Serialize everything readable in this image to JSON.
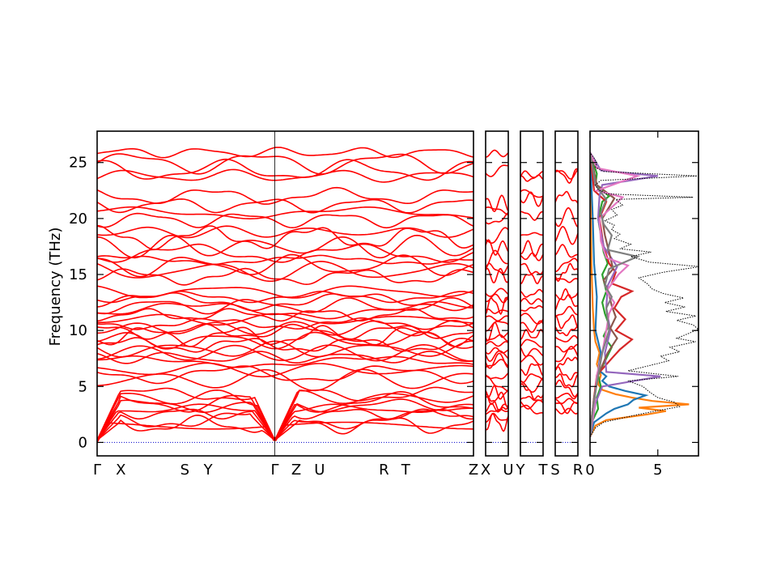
{
  "chart_data": {
    "type": "line",
    "title": "",
    "ylabel": "Frequency (THz)",
    "ylim": [
      -1.2,
      27.8
    ],
    "yticks": [
      0,
      5,
      10,
      15,
      20,
      25
    ],
    "colors": {
      "bands": "#ff0000",
      "zero_line": "#0000cc",
      "total_dos": "#000000"
    },
    "panels": [
      {
        "name": "main-path",
        "ticks": [
          {
            "label": "Γ",
            "x": 0.0
          },
          {
            "label": "X",
            "x": 0.063
          },
          {
            "label": "S",
            "x": 0.233
          },
          {
            "label": "Y",
            "x": 0.295
          },
          {
            "label": "Γ",
            "x": 0.472
          },
          {
            "label": "Z",
            "x": 0.529
          },
          {
            "label": "U",
            "x": 0.591
          },
          {
            "label": "R",
            "x": 0.762
          },
          {
            "label": "T",
            "x": 0.82
          },
          {
            "label": "Z",
            "x": 1.0
          }
        ],
        "soft_gamma_points": [
          0.0,
          0.472
        ],
        "band_levels": [
          0.0,
          1.6,
          2.1,
          2.6,
          3.0,
          3.3,
          3.6,
          4.0,
          4.3,
          5.6,
          6.1,
          6.5,
          7.2,
          7.6,
          8.0,
          8.3,
          8.7,
          9.1,
          9.5,
          9.9,
          10.2,
          10.6,
          11.0,
          11.4,
          11.8,
          12.2,
          12.6,
          13.0,
          13.5,
          14.8,
          15.3,
          15.8,
          16.3,
          16.9,
          17.5,
          18.3,
          18.8,
          19.9,
          20.5,
          21.2,
          22.0,
          23.8,
          24.3,
          25.0,
          25.9
        ]
      },
      {
        "name": "x-u",
        "ticks": [
          {
            "label": "X",
            "x": 0.0
          },
          {
            "label": "U",
            "x": 1.0
          }
        ],
        "band_levels": [
          1.8,
          2.2,
          2.7,
          3.1,
          3.5,
          3.9,
          4.4,
          5.2,
          6.0,
          6.8,
          7.3,
          7.8,
          8.2,
          8.8,
          9.3,
          9.9,
          10.5,
          11.1,
          11.7,
          12.3,
          12.9,
          13.4,
          14.9,
          15.5,
          16.4,
          17.4,
          18.4,
          20.0,
          20.7,
          21.3,
          24.4,
          25.8
        ]
      },
      {
        "name": "y-t",
        "ticks": [
          {
            "label": "Y",
            "x": 0.0
          },
          {
            "label": "T",
            "x": 1.0
          }
        ],
        "band_levels": [
          2.9,
          3.4,
          3.9,
          4.5,
          5.1,
          5.8,
          6.6,
          7.4,
          8.1,
          8.9,
          9.6,
          10.3,
          11.1,
          11.9,
          12.6,
          13.3,
          14.7,
          15.6,
          16.6,
          17.3,
          18.5,
          20.3,
          21.8,
          22.2,
          23.6,
          23.9
        ]
      },
      {
        "name": "s-r",
        "ticks": [
          {
            "label": "S",
            "x": 0.0
          },
          {
            "label": "R",
            "x": 1.0
          }
        ],
        "band_levels": [
          2.8,
          3.2,
          3.7,
          4.2,
          4.8,
          5.5,
          6.2,
          7.0,
          7.7,
          8.4,
          9.2,
          10.0,
          10.8,
          11.6,
          12.4,
          13.2,
          14.5,
          15.2,
          15.9,
          17.0,
          18.5,
          20.1,
          21.8,
          23.8,
          24.0
        ]
      }
    ],
    "dos": {
      "xlim": [
        0,
        8
      ],
      "xticks": [
        0,
        5
      ],
      "total": [
        [
          0.5,
          0.0
        ],
        [
          1.3,
          0.4
        ],
        [
          1.8,
          1.0
        ],
        [
          2.4,
          3.2
        ],
        [
          2.8,
          4.8
        ],
        [
          3.2,
          6.6
        ],
        [
          3.6,
          6.2
        ],
        [
          4.0,
          5.0
        ],
        [
          4.5,
          4.4
        ],
        [
          5.0,
          3.9
        ],
        [
          5.5,
          2.8
        ],
        [
          5.9,
          6.5
        ],
        [
          6.4,
          2.8
        ],
        [
          6.9,
          4.5
        ],
        [
          7.3,
          5.8
        ],
        [
          7.7,
          5.2
        ],
        [
          8.1,
          6.6
        ],
        [
          8.5,
          5.9
        ],
        [
          9.0,
          7.8
        ],
        [
          9.3,
          6.4
        ],
        [
          9.7,
          7.2
        ],
        [
          10.1,
          8.0
        ],
        [
          10.5,
          7.6
        ],
        [
          10.9,
          6.4
        ],
        [
          11.3,
          7.8
        ],
        [
          11.7,
          5.6
        ],
        [
          12.1,
          7.0
        ],
        [
          12.5,
          5.5
        ],
        [
          12.9,
          6.9
        ],
        [
          13.3,
          5.4
        ],
        [
          13.7,
          4.6
        ],
        [
          14.2,
          4.2
        ],
        [
          14.7,
          3.6
        ],
        [
          15.2,
          5.4
        ],
        [
          15.7,
          8.1
        ],
        [
          16.1,
          4.4
        ],
        [
          16.6,
          3.0
        ],
        [
          17.0,
          4.5
        ],
        [
          17.3,
          2.2
        ],
        [
          17.7,
          3.0
        ],
        [
          18.2,
          1.8
        ],
        [
          18.6,
          2.2
        ],
        [
          19.0,
          1.6
        ],
        [
          19.4,
          1.8
        ],
        [
          19.8,
          1.1
        ],
        [
          20.3,
          2.0
        ],
        [
          20.8,
          1.6
        ],
        [
          21.2,
          2.4
        ],
        [
          21.7,
          1.9
        ],
        [
          21.9,
          7.6
        ],
        [
          22.2,
          1.2
        ],
        [
          22.6,
          0.6
        ],
        [
          23.0,
          0.4
        ],
        [
          23.4,
          0.8
        ],
        [
          23.8,
          7.9
        ],
        [
          24.2,
          1.0
        ],
        [
          24.6,
          0.4
        ],
        [
          25.0,
          0.5
        ],
        [
          25.4,
          0.3
        ],
        [
          25.9,
          0.0
        ]
      ],
      "projected": [
        {
          "color": "#ff7f0e",
          "points": [
            [
              0.5,
              0.0
            ],
            [
              1.5,
              0.4
            ],
            [
              2.0,
              1.2
            ],
            [
              2.5,
              4.2
            ],
            [
              2.8,
              5.6
            ],
            [
              3.1,
              3.6
            ],
            [
              3.4,
              7.3
            ],
            [
              3.7,
              4.6
            ],
            [
              4.0,
              3.1
            ],
            [
              4.3,
              1.9
            ],
            [
              4.7,
              0.9
            ],
            [
              5.2,
              0.6
            ],
            [
              6.0,
              0.8
            ],
            [
              7.0,
              0.5
            ],
            [
              8.0,
              0.7
            ],
            [
              9.0,
              0.4
            ],
            [
              10.0,
              0.3
            ],
            [
              12.0,
              0.2
            ],
            [
              16.0,
              0.1
            ],
            [
              25.9,
              0.0
            ]
          ]
        },
        {
          "color": "#1f77b4",
          "points": [
            [
              0.5,
              0.0
            ],
            [
              1.8,
              0.3
            ],
            [
              2.6,
              1.2
            ],
            [
              3.0,
              1.8
            ],
            [
              3.4,
              2.8
            ],
            [
              3.8,
              3.2
            ],
            [
              4.2,
              4.1
            ],
            [
              4.6,
              2.6
            ],
            [
              5.0,
              1.4
            ],
            [
              5.5,
              0.9
            ],
            [
              5.9,
              1.2
            ],
            [
              6.5,
              0.6
            ],
            [
              8.0,
              0.8
            ],
            [
              10.0,
              0.4
            ],
            [
              13.0,
              0.5
            ],
            [
              16.0,
              0.3
            ],
            [
              20.0,
              0.2
            ],
            [
              25.9,
              0.0
            ]
          ]
        },
        {
          "color": "#2ca02c",
          "points": [
            [
              0.5,
              0.0
            ],
            [
              2.0,
              0.2
            ],
            [
              3.0,
              0.6
            ],
            [
              4.0,
              0.5
            ],
            [
              5.0,
              0.8
            ],
            [
              6.0,
              0.6
            ],
            [
              7.5,
              1.2
            ],
            [
              8.5,
              1.6
            ],
            [
              9.5,
              1.0
            ],
            [
              10.5,
              1.4
            ],
            [
              11.5,
              1.1
            ],
            [
              12.5,
              0.9
            ],
            [
              13.5,
              1.2
            ],
            [
              15.0,
              0.9
            ],
            [
              16.0,
              1.3
            ],
            [
              17.0,
              1.0
            ],
            [
              18.5,
              0.8
            ],
            [
              20.0,
              0.6
            ],
            [
              21.5,
              0.9
            ],
            [
              22.0,
              1.4
            ],
            [
              23.0,
              0.4
            ],
            [
              24.0,
              0.5
            ],
            [
              25.9,
              0.0
            ]
          ]
        },
        {
          "color": "#d62728",
          "points": [
            [
              0.5,
              0.0
            ],
            [
              2.0,
              0.1
            ],
            [
              4.0,
              0.3
            ],
            [
              6.0,
              0.5
            ],
            [
              7.5,
              1.6
            ],
            [
              8.3,
              2.2
            ],
            [
              9.2,
              3.1
            ],
            [
              10.0,
              1.9
            ],
            [
              11.0,
              2.6
            ],
            [
              12.0,
              1.8
            ],
            [
              13.0,
              2.3
            ],
            [
              13.5,
              3.1
            ],
            [
              14.2,
              1.6
            ],
            [
              15.2,
              1.9
            ],
            [
              16.0,
              1.4
            ],
            [
              17.5,
              1.0
            ],
            [
              20.0,
              0.7
            ],
            [
              21.5,
              1.2
            ],
            [
              22.5,
              0.3
            ],
            [
              25.9,
              0.0
            ]
          ]
        },
        {
          "color": "#9467bd",
          "points": [
            [
              0.5,
              0.0
            ],
            [
              2.0,
              0.2
            ],
            [
              3.5,
              0.4
            ],
            [
              5.0,
              0.9
            ],
            [
              5.9,
              5.2
            ],
            [
              6.3,
              1.2
            ],
            [
              8.0,
              1.1
            ],
            [
              10.0,
              1.5
            ],
            [
              12.0,
              1.2
            ],
            [
              14.0,
              1.3
            ],
            [
              15.7,
              2.0
            ],
            [
              17.5,
              1.0
            ],
            [
              20.0,
              0.6
            ],
            [
              22.0,
              0.7
            ],
            [
              23.0,
              0.9
            ],
            [
              23.8,
              5.0
            ],
            [
              24.3,
              0.8
            ],
            [
              25.9,
              0.0
            ]
          ]
        },
        {
          "color": "#8c564b",
          "points": [
            [
              0.5,
              0.0
            ],
            [
              2.0,
              0.1
            ],
            [
              4.0,
              0.3
            ],
            [
              6.0,
              0.6
            ],
            [
              8.0,
              1.3
            ],
            [
              9.3,
              2.0
            ],
            [
              10.2,
              1.5
            ],
            [
              11.2,
              1.9
            ],
            [
              12.2,
              1.6
            ],
            [
              13.2,
              1.4
            ],
            [
              14.5,
              1.0
            ],
            [
              15.5,
              1.7
            ],
            [
              17.0,
              1.4
            ],
            [
              18.5,
              1.1
            ],
            [
              20.0,
              0.9
            ],
            [
              21.8,
              1.8
            ],
            [
              23.0,
              0.5
            ],
            [
              25.9,
              0.0
            ]
          ]
        },
        {
          "color": "#e377c2",
          "points": [
            [
              0.5,
              0.0
            ],
            [
              3.0,
              0.3
            ],
            [
              6.0,
              0.5
            ],
            [
              8.0,
              0.9
            ],
            [
              10.0,
              1.2
            ],
            [
              11.5,
              1.4
            ],
            [
              12.5,
              1.8
            ],
            [
              13.5,
              1.2
            ],
            [
              15.0,
              2.1
            ],
            [
              15.8,
              2.8
            ],
            [
              16.5,
              1.2
            ],
            [
              18.0,
              0.8
            ],
            [
              20.0,
              0.7
            ],
            [
              21.9,
              2.4
            ],
            [
              22.5,
              0.5
            ],
            [
              23.8,
              3.5
            ],
            [
              24.5,
              0.5
            ],
            [
              25.9,
              0.0
            ]
          ]
        },
        {
          "color": "#7f7f7f",
          "points": [
            [
              0.5,
              0.0
            ],
            [
              3.0,
              0.2
            ],
            [
              6.0,
              0.6
            ],
            [
              8.0,
              0.9
            ],
            [
              10.0,
              1.4
            ],
            [
              12.0,
              1.2
            ],
            [
              13.0,
              1.6
            ],
            [
              14.0,
              1.1
            ],
            [
              15.5,
              1.4
            ],
            [
              16.6,
              3.5
            ],
            [
              17.2,
              1.3
            ],
            [
              18.5,
              1.6
            ],
            [
              19.5,
              1.0
            ],
            [
              20.5,
              0.8
            ],
            [
              21.7,
              1.2
            ],
            [
              23.0,
              0.4
            ],
            [
              25.9,
              0.0
            ]
          ]
        }
      ]
    }
  }
}
